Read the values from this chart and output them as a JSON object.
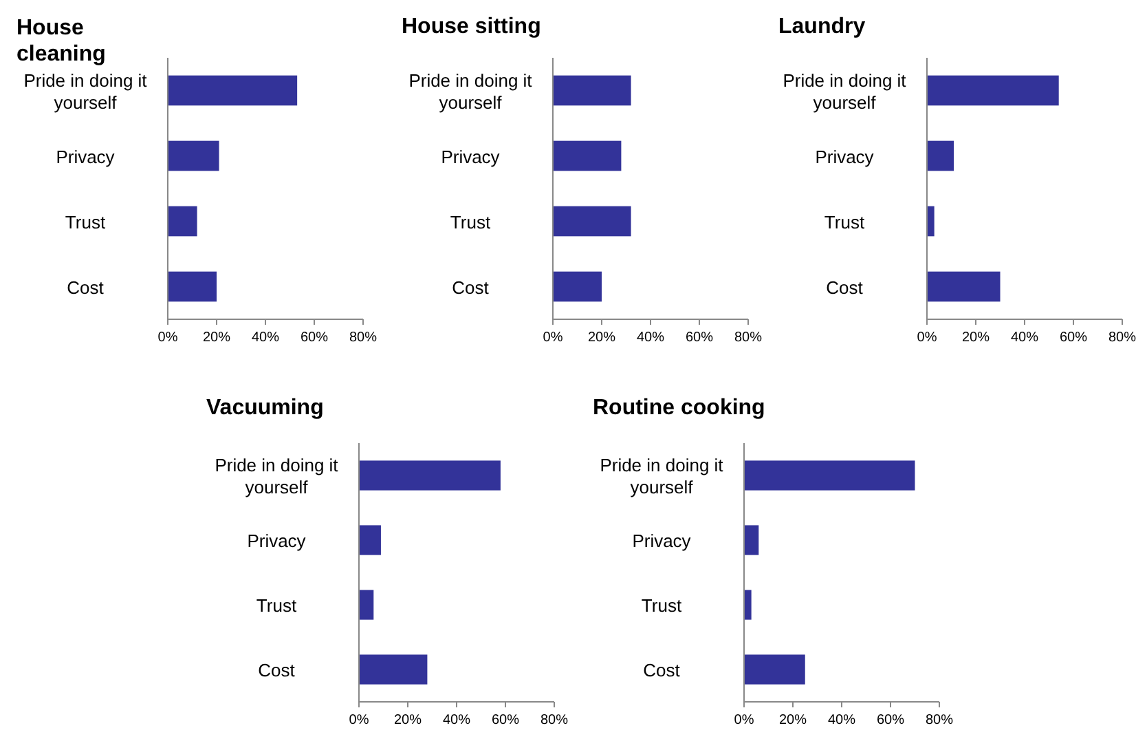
{
  "chart_data": [
    {
      "type": "bar",
      "orientation": "horizontal",
      "title": "House cleaning",
      "categories": [
        "Pride in doing it yourself",
        "Privacy",
        "Trust",
        "Cost"
      ],
      "values": [
        53,
        21,
        12,
        20
      ],
      "color": "#333399",
      "xlim": [
        0,
        80
      ],
      "xticks": [
        {
          "value": 0,
          "label": "0%"
        },
        {
          "value": 20,
          "label": "20%"
        },
        {
          "value": 40,
          "label": "40%"
        },
        {
          "value": 60,
          "label": "60%"
        },
        {
          "value": 80,
          "label": "80%"
        }
      ]
    },
    {
      "type": "bar",
      "orientation": "horizontal",
      "title": "House sitting",
      "categories": [
        "Pride in doing it yourself",
        "Privacy",
        "Trust",
        "Cost"
      ],
      "values": [
        32,
        28,
        32,
        20
      ],
      "color": "#333399",
      "xlim": [
        0,
        80
      ],
      "xticks": [
        {
          "value": 0,
          "label": "0%"
        },
        {
          "value": 20,
          "label": "20%"
        },
        {
          "value": 40,
          "label": "40%"
        },
        {
          "value": 60,
          "label": "60%"
        },
        {
          "value": 80,
          "label": "80%"
        }
      ]
    },
    {
      "type": "bar",
      "orientation": "horizontal",
      "title": "Laundry",
      "categories": [
        "Pride in doing it yourself",
        "Privacy",
        "Trust",
        "Cost"
      ],
      "values": [
        54,
        11,
        3,
        30
      ],
      "color": "#333399",
      "xlim": [
        0,
        80
      ],
      "xticks": [
        {
          "value": 0,
          "label": "0%"
        },
        {
          "value": 20,
          "label": "20%"
        },
        {
          "value": 40,
          "label": "40%"
        },
        {
          "value": 60,
          "label": "60%"
        },
        {
          "value": 80,
          "label": "80%"
        }
      ]
    },
    {
      "type": "bar",
      "orientation": "horizontal",
      "title": "Vacuuming",
      "categories": [
        "Pride in doing it yourself",
        "Privacy",
        "Trust",
        "Cost"
      ],
      "values": [
        58,
        9,
        6,
        28
      ],
      "color": "#333399",
      "xlim": [
        0,
        80
      ],
      "xticks": [
        {
          "value": 0,
          "label": "0%"
        },
        {
          "value": 20,
          "label": "20%"
        },
        {
          "value": 40,
          "label": "40%"
        },
        {
          "value": 60,
          "label": "60%"
        },
        {
          "value": 80,
          "label": "80%"
        }
      ]
    },
    {
      "type": "bar",
      "orientation": "horizontal",
      "title": "Routine cooking",
      "categories": [
        "Pride in doing it yourself",
        "Privacy",
        "Trust",
        "Cost"
      ],
      "values": [
        70,
        6,
        3,
        25
      ],
      "color": "#333399",
      "xlim": [
        0,
        80
      ],
      "xticks": [
        {
          "value": 0,
          "label": "0%"
        },
        {
          "value": 20,
          "label": "20%"
        },
        {
          "value": 40,
          "label": "40%"
        },
        {
          "value": 60,
          "label": "60%"
        },
        {
          "value": 80,
          "label": "80%"
        }
      ]
    }
  ]
}
